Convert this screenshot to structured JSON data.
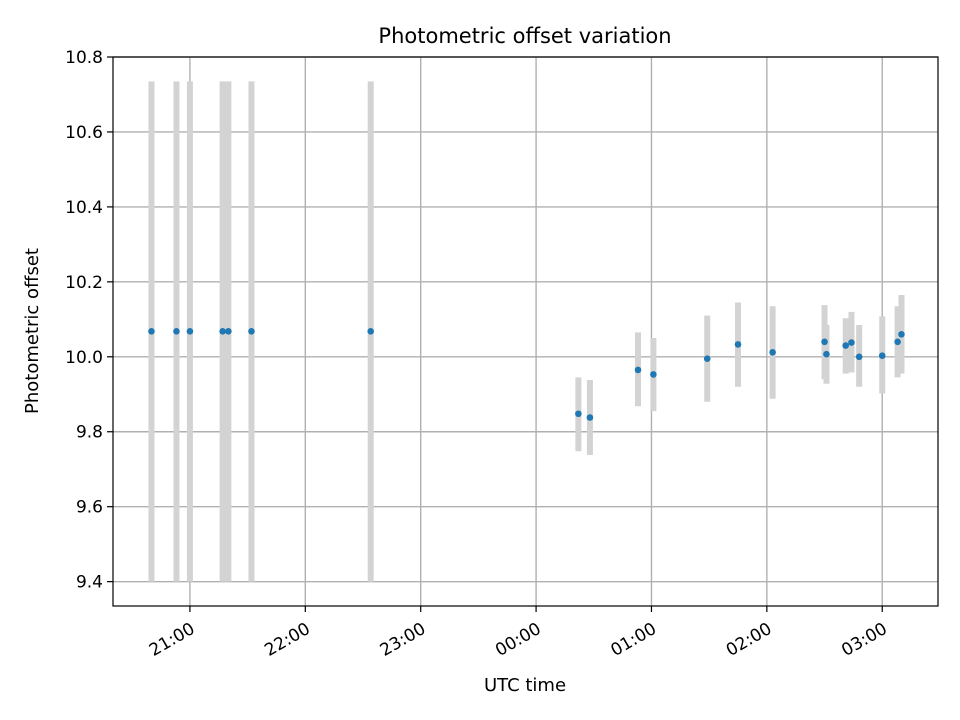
{
  "chart_data": {
    "type": "scatter",
    "title": "Photometric offset variation",
    "xlabel": "UTC time",
    "ylabel": "Photometric offset",
    "grid": true,
    "legend": "none",
    "x_axis_type": "time",
    "xlim": [
      "2024-01-01T20:20",
      "2024-01-02T03:29"
    ],
    "ylim": [
      9.335,
      10.8
    ],
    "xticks": [
      {
        "time": "2024-01-01T21:00",
        "label": "21:00"
      },
      {
        "time": "2024-01-01T22:00",
        "label": "22:00"
      },
      {
        "time": "2024-01-01T23:00",
        "label": "23:00"
      },
      {
        "time": "2024-01-02T00:00",
        "label": "00:00"
      },
      {
        "time": "2024-01-02T01:00",
        "label": "01:00"
      },
      {
        "time": "2024-01-02T02:00",
        "label": "02:00"
      },
      {
        "time": "2024-01-02T03:00",
        "label": "03:00"
      }
    ],
    "yticks": [
      {
        "value": 9.4,
        "label": "9.4"
      },
      {
        "value": 9.6,
        "label": "9.6"
      },
      {
        "value": 9.8,
        "label": "9.8"
      },
      {
        "value": 10.0,
        "label": "10.0"
      },
      {
        "value": 10.2,
        "label": "10.2"
      },
      {
        "value": 10.4,
        "label": "10.4"
      },
      {
        "value": 10.6,
        "label": "10.6"
      },
      {
        "value": 10.8,
        "label": "10.8"
      }
    ],
    "points": [
      {
        "time": "2024-01-01T20:40",
        "y": 10.068,
        "err_low": 9.4,
        "err_high": 10.735
      },
      {
        "time": "2024-01-01T20:53",
        "y": 10.068,
        "err_low": 9.4,
        "err_high": 10.735
      },
      {
        "time": "2024-01-01T21:00",
        "y": 10.068,
        "err_low": 9.4,
        "err_high": 10.735
      },
      {
        "time": "2024-01-01T21:17",
        "y": 10.068,
        "err_low": 9.4,
        "err_high": 10.735
      },
      {
        "time": "2024-01-01T21:20",
        "y": 10.068,
        "err_low": 9.4,
        "err_high": 10.735
      },
      {
        "time": "2024-01-01T21:32",
        "y": 10.068,
        "err_low": 9.4,
        "err_high": 10.735
      },
      {
        "time": "2024-01-01T22:34",
        "y": 10.068,
        "err_low": 9.4,
        "err_high": 10.735
      },
      {
        "time": "2024-01-02T00:22",
        "y": 9.848,
        "err_low": 9.748,
        "err_high": 9.945
      },
      {
        "time": "2024-01-02T00:28",
        "y": 9.838,
        "err_low": 9.738,
        "err_high": 9.938
      },
      {
        "time": "2024-01-02T00:53",
        "y": 9.965,
        "err_low": 9.868,
        "err_high": 10.065
      },
      {
        "time": "2024-01-02T01:01",
        "y": 9.953,
        "err_low": 9.855,
        "err_high": 10.05
      },
      {
        "time": "2024-01-02T01:29",
        "y": 9.995,
        "err_low": 9.88,
        "err_high": 10.11
      },
      {
        "time": "2024-01-02T01:45",
        "y": 10.033,
        "err_low": 9.92,
        "err_high": 10.145
      },
      {
        "time": "2024-01-02T02:03",
        "y": 10.012,
        "err_low": 9.888,
        "err_high": 10.135
      },
      {
        "time": "2024-01-02T02:30",
        "y": 10.04,
        "err_low": 9.94,
        "err_high": 10.138
      },
      {
        "time": "2024-01-02T02:31",
        "y": 10.007,
        "err_low": 9.928,
        "err_high": 10.085
      },
      {
        "time": "2024-01-02T02:41",
        "y": 10.03,
        "err_low": 9.955,
        "err_high": 10.103
      },
      {
        "time": "2024-01-02T02:44",
        "y": 10.038,
        "err_low": 9.958,
        "err_high": 10.12
      },
      {
        "time": "2024-01-02T02:48",
        "y": 10.0,
        "err_low": 9.92,
        "err_high": 10.085
      },
      {
        "time": "2024-01-02T03:00",
        "y": 10.003,
        "err_low": 9.902,
        "err_high": 10.108
      },
      {
        "time": "2024-01-02T03:08",
        "y": 10.04,
        "err_low": 9.945,
        "err_high": 10.135
      },
      {
        "time": "2024-01-02T03:10",
        "y": 10.06,
        "err_low": 9.955,
        "err_high": 10.165
      }
    ],
    "colors": {
      "marker": "#1f77b4",
      "errorbar": "#d3d3d3",
      "grid": "#b0b0b0",
      "axis": "#000000"
    }
  }
}
